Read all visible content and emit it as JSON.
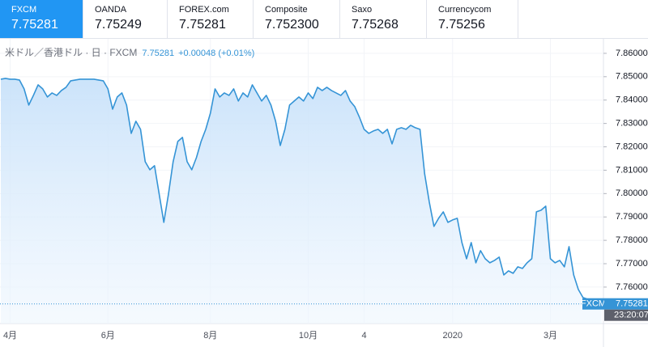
{
  "tabs": [
    {
      "name": "FXCM",
      "price": "7.75281"
    },
    {
      "name": "OANDA",
      "price": "7.75249"
    },
    {
      "name": "FOREX.com",
      "price": "7.75281"
    },
    {
      "name": "Composite",
      "price": "7.752300"
    },
    {
      "name": "Saxo",
      "price": "7.75268"
    },
    {
      "name": "Currencycom",
      "price": "7.75256"
    }
  ],
  "active_tab": 0,
  "chart_data": {
    "type": "area",
    "legend": {
      "symbol": "米ドル／香港ドル · 日 · FXCM",
      "price": "7.75281",
      "change": "+0.00048 (+0.01%)"
    },
    "last_price": {
      "series": "FXCM",
      "label": "7.75281",
      "time": "23:20:07"
    },
    "color": "#3594d6",
    "grid": true,
    "ylim": [
      7.7444,
      7.8662
    ],
    "yticks": [
      {
        "value": 7.76,
        "label": "7.76000"
      },
      {
        "value": 7.77,
        "label": "7.77000"
      },
      {
        "value": 7.78,
        "label": "7.78000"
      },
      {
        "value": 7.79,
        "label": "7.79000"
      },
      {
        "value": 7.8,
        "label": "7.80000"
      },
      {
        "value": 7.81,
        "label": "7.81000"
      },
      {
        "value": 7.82,
        "label": "7.82000"
      },
      {
        "value": 7.83,
        "label": "7.83000"
      },
      {
        "value": 7.84,
        "label": "7.84000"
      },
      {
        "value": 7.85,
        "label": "7.85000"
      },
      {
        "value": 7.86,
        "label": "7.86000"
      }
    ],
    "categories": [
      null,
      null,
      "4月",
      null,
      null,
      null,
      null,
      null,
      null,
      null,
      null,
      null,
      null,
      null,
      null,
      null,
      null,
      null,
      null,
      null,
      null,
      null,
      null,
      "6月",
      null,
      null,
      null,
      null,
      null,
      null,
      null,
      null,
      null,
      null,
      null,
      null,
      null,
      null,
      null,
      null,
      null,
      null,
      null,
      null,
      null,
      "8月",
      null,
      null,
      null,
      null,
      null,
      null,
      null,
      null,
      null,
      null,
      null,
      null,
      null,
      null,
      null,
      null,
      null,
      null,
      null,
      null,
      "10月",
      null,
      null,
      null,
      null,
      null,
      null,
      null,
      null,
      null,
      null,
      null,
      "4",
      null,
      null,
      null,
      null,
      null,
      null,
      null,
      null,
      null,
      null,
      null,
      null,
      null,
      null,
      null,
      null,
      null,
      null,
      "2020",
      null,
      null,
      null,
      null,
      null,
      null,
      null,
      null,
      null,
      null,
      null,
      null,
      null,
      null,
      null,
      null,
      null,
      null,
      null,
      null,
      "3月",
      null,
      null,
      null,
      null,
      null,
      null,
      null,
      null,
      null,
      null,
      null
    ],
    "values": [
      7.84893,
      7.84927,
      7.84893,
      7.84893,
      7.84858,
      7.84478,
      7.83786,
      7.84201,
      7.84651,
      7.84478,
      7.84132,
      7.84305,
      7.84201,
      7.84408,
      7.84547,
      7.84824,
      7.84858,
      7.84893,
      7.84893,
      7.84893,
      7.84893,
      7.84858,
      7.84824,
      7.84478,
      7.83612,
      7.84132,
      7.84305,
      7.83786,
      7.82575,
      7.83094,
      7.82748,
      7.81364,
      7.81018,
      7.81191,
      7.7998,
      7.78769,
      7.7998,
      7.81364,
      7.82229,
      7.82402,
      7.81364,
      7.81018,
      7.81537,
      7.82229,
      7.82748,
      7.8344,
      7.84478,
      7.84132,
      7.84305,
      7.84201,
      7.84478,
      7.83959,
      7.84305,
      7.84132,
      7.84651,
      7.84305,
      7.83959,
      7.84201,
      7.83786,
      7.83094,
      7.82056,
      7.82748,
      7.83786,
      7.83959,
      7.84132,
      7.83959,
      7.84305,
      7.84062,
      7.84547,
      7.84408,
      7.84547,
      7.84408,
      7.84305,
      7.84201,
      7.84408,
      7.83959,
      7.83716,
      7.83267,
      7.82748,
      7.82575,
      7.82678,
      7.82748,
      7.82575,
      7.82748,
      7.82125,
      7.82748,
      7.82817,
      7.82748,
      7.82921,
      7.82817,
      7.82748,
      7.80845,
      7.79634,
      7.78596,
      7.78942,
      7.79218,
      7.78769,
      7.78872,
      7.78942,
      7.77904,
      7.77212,
      7.77904,
      7.77039,
      7.77558,
      7.77212,
      7.77039,
      7.77142,
      7.77281,
      7.7652,
      7.76693,
      7.76589,
      7.76866,
      7.76796,
      7.77039,
      7.77212,
      7.79218,
      7.79288,
      7.79461,
      7.77212,
      7.77039,
      7.77142,
      7.76866,
      7.77731,
      7.7652,
      7.75897,
      7.75551,
      7.75482,
      7.75412,
      7.75343,
      7.75281
    ]
  }
}
